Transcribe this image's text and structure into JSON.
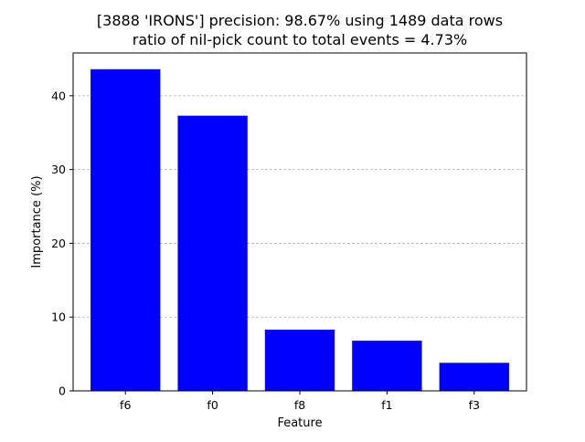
{
  "chart_data": {
    "type": "bar",
    "title": "[3888 'IRONS'] precision: 98.67% using 1489 data rows",
    "subtitle": "ratio of nil-pick count to total events = 4.73%",
    "xlabel": "Feature",
    "ylabel": "Importance (%)",
    "categories": [
      "f6",
      "f0",
      "f8",
      "f1",
      "f3"
    ],
    "values": [
      43.6,
      37.3,
      8.3,
      6.8,
      3.8
    ],
    "ylim": [
      0,
      45.8
    ],
    "yticks": [
      0,
      10,
      20,
      30,
      40
    ],
    "grid": "y-dashed",
    "bar_color": "#0000ff",
    "grid_color": "#b0b0b0"
  }
}
